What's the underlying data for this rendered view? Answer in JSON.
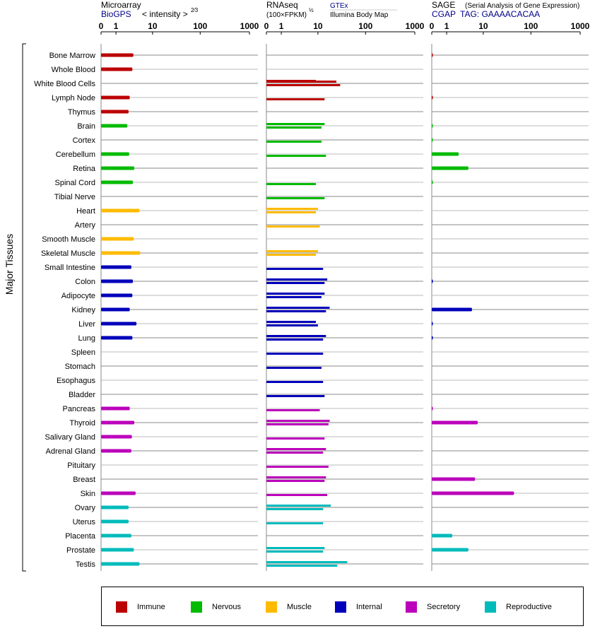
{
  "chart_data": {
    "type": "bar",
    "ylabel": "Major Tissues",
    "categories": [
      "Bone Marrow",
      "Whole Blood",
      "White Blood Cells",
      "Lymph Node",
      "Thymus",
      "Brain",
      "Cortex",
      "Cerebellum",
      "Retina",
      "Spinal Cord",
      "Tibial Nerve",
      "Heart",
      "Artery",
      "Smooth Muscle",
      "Skeletal Muscle",
      "Small Intestine",
      "Colon",
      "Adipocyte",
      "Kidney",
      "Liver",
      "Lung",
      "Spleen",
      "Stomach",
      "Esophagus",
      "Bladder",
      "Pancreas",
      "Thyroid",
      "Salivary Gland",
      "Adrenal Gland",
      "Pituitary",
      "Breast",
      "Skin",
      "Ovary",
      "Uterus",
      "Placenta",
      "Prostate",
      "Testis"
    ],
    "groups": [
      "immune",
      "immune",
      "immune",
      "immune",
      "immune",
      "nervous",
      "nervous",
      "nervous",
      "nervous",
      "nervous",
      "nervous",
      "muscle",
      "muscle",
      "muscle",
      "muscle",
      "internal",
      "internal",
      "internal",
      "internal",
      "internal",
      "internal",
      "internal",
      "internal",
      "internal",
      "internal",
      "secretory",
      "secretory",
      "secretory",
      "secretory",
      "secretory",
      "secretory",
      "secretory",
      "reproductive",
      "reproductive",
      "reproductive",
      "reproductive",
      "reproductive"
    ],
    "colors": {
      "immune": "#bb0000",
      "nervous": "#00bb00",
      "muscle": "#ffbb00",
      "internal": "#0000bb",
      "secretory": "#bb00bb",
      "reproductive": "#00bbbb"
    },
    "panels": [
      {
        "name": "microarray",
        "title": "Microarray",
        "title_note": "",
        "subtitle": "BioGPS",
        "subtitle_note": "< intensity >",
        "subtitle_sup": "2⁄3",
        "ticks": [
          "0",
          "1",
          "10",
          "100",
          "1000"
        ],
        "xlim": [
          0,
          1000
        ],
        "values": [
          [
            3.5
          ],
          [
            3.3
          ],
          [],
          [
            2.8
          ],
          [
            2.6
          ],
          [
            2.4
          ],
          [],
          [
            2.7
          ],
          [
            3.7
          ],
          [
            3.4
          ],
          [],
          [
            5.0
          ],
          [],
          [
            3.6
          ],
          [
            5.2
          ],
          [
            3.1
          ],
          [
            3.4
          ],
          [
            3.3
          ],
          [
            2.8
          ],
          [
            4.2
          ],
          [
            3.3
          ],
          [],
          [],
          [],
          [],
          [
            2.8
          ],
          [
            3.7
          ],
          [
            3.2
          ],
          [
            3.1
          ],
          [],
          [],
          [
            4.0
          ],
          [
            2.6
          ],
          [
            2.6
          ],
          [
            3.1
          ],
          [
            3.6
          ],
          [
            5.0
          ]
        ]
      },
      {
        "name": "rnaseq",
        "title": "RNAseq",
        "title_note": "GTEx",
        "subtitle": "(100×FPKM)",
        "subtitle_sup": "½",
        "subtitle_note": "Illumina Body Map",
        "ticks": [
          "0",
          "1",
          "10",
          "100",
          "1000"
        ],
        "xlim": [
          0,
          1000
        ],
        "values": [
          [],
          [
            9
          ],
          [],
          [],
          [],
          [],
          [],
          [],
          [],
          [],
          [],
          [],
          [],
          [],
          [],
          [],
          [],
          [],
          [],
          [],
          [],
          [],
          [],
          [],
          [],
          [],
          [],
          [],
          [],
          [],
          [],
          [],
          [],
          [],
          [],
          [],
          []
        ],
        "values_secondary": [
          [],
          [],
          [
            30
          ],
          [
            14
          ],
          [],
          [
            12
          ],
          [
            12
          ],
          [
            15
          ],
          [],
          [
            9
          ],
          [
            14
          ],
          [
            9
          ],
          [
            11
          ],
          [],
          [
            9
          ],
          [
            13
          ],
          [
            14
          ],
          [
            12
          ],
          [
            15
          ],
          [
            10
          ],
          [
            13
          ],
          [
            13
          ],
          [
            12
          ],
          [
            13
          ],
          [
            14
          ],
          [
            11
          ],
          [
            17
          ],
          [
            14
          ],
          [
            13
          ],
          [
            17
          ],
          [
            14
          ],
          [
            16
          ],
          [
            13
          ],
          [
            13
          ],
          [],
          [
            13
          ],
          [
            26
          ]
        ],
        "values_primary": [
          [],
          [],
          [
            25
          ],
          [],
          [],
          [
            14
          ],
          [],
          [],
          [],
          [],
          [],
          [
            10
          ],
          [],
          [],
          [
            10
          ],
          [],
          [
            16
          ],
          [
            14
          ],
          [
            18
          ],
          [
            9
          ],
          [
            15
          ],
          [],
          [],
          [],
          [],
          [],
          [
            18
          ],
          [],
          [
            15
          ],
          [],
          [
            15
          ],
          [],
          [
            19
          ],
          [],
          [],
          [
            14
          ],
          [
            42
          ]
        ]
      },
      {
        "name": "sage",
        "title": "SAGE",
        "title_note": "(Serial Analysis of Gene Expression)",
        "subtitle": "CGAP",
        "subtitle_sup": "",
        "subtitle_note": "TAG: GAAAACACAA",
        "ticks": [
          "0",
          "1",
          "10",
          "100",
          "1000"
        ],
        "xlim": [
          0,
          1000
        ],
        "values": [
          [
            0.05
          ],
          [],
          [],
          [
            0.05
          ],
          [],
          [
            0.02
          ],
          [
            0.02
          ],
          [
            2.5
          ],
          [
            4.5
          ],
          [
            0.02
          ],
          [],
          [],
          [],
          [],
          [],
          [],
          [
            0.05
          ],
          [],
          [
            5.5
          ],
          [
            0.05
          ],
          [
            0.05
          ],
          [],
          [],
          [],
          [],
          [
            0.05
          ],
          [
            7.5
          ],
          [],
          [],
          [],
          [
            6.5
          ],
          [
            45
          ],
          [],
          [],
          [
            1.6
          ],
          [
            4.5
          ],
          []
        ]
      }
    ],
    "legend": [
      {
        "key": "immune",
        "label": "Immune"
      },
      {
        "key": "nervous",
        "label": "Nervous"
      },
      {
        "key": "muscle",
        "label": "Muscle"
      },
      {
        "key": "internal",
        "label": "Internal"
      },
      {
        "key": "secretory",
        "label": "Secretory"
      },
      {
        "key": "reproductive",
        "label": "Reproductive"
      }
    ]
  }
}
